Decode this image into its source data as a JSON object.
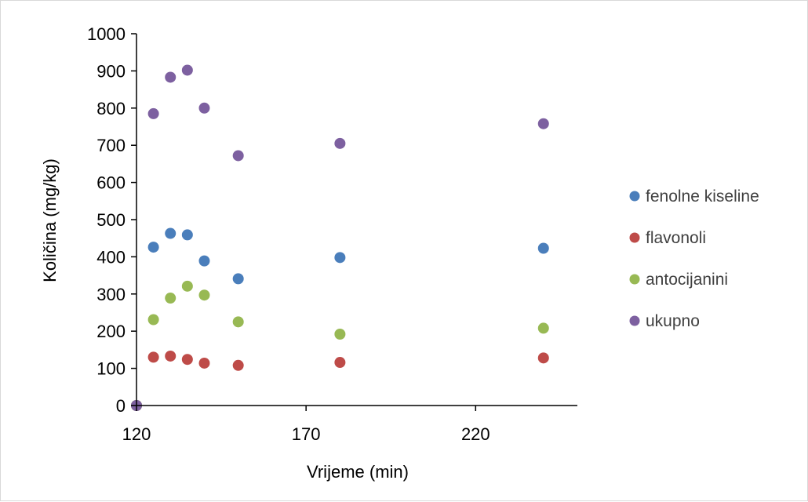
{
  "chart_data": {
    "type": "scatter",
    "title": "",
    "xlabel": "Vrijeme (min)",
    "ylabel": "Količina (mg/kg)",
    "xlim": [
      120,
      250
    ],
    "ylim": [
      0,
      1000
    ],
    "xticks": [
      120,
      170,
      220
    ],
    "yticks": [
      0,
      100,
      200,
      300,
      400,
      500,
      600,
      700,
      800,
      900,
      1000
    ],
    "grid": false,
    "legend_position": "right",
    "series": [
      {
        "name": "fenolne kiseline",
        "color": "#4a7ebb",
        "points": [
          [
            120,
            0
          ],
          [
            125,
            426
          ],
          [
            130,
            463
          ],
          [
            135,
            459
          ],
          [
            140,
            389
          ],
          [
            150,
            341
          ],
          [
            180,
            398
          ],
          [
            240,
            423
          ]
        ]
      },
      {
        "name": "flavonoli",
        "color": "#be4b48",
        "points": [
          [
            120,
            0
          ],
          [
            125,
            130
          ],
          [
            130,
            133
          ],
          [
            135,
            124
          ],
          [
            140,
            114
          ],
          [
            150,
            108
          ],
          [
            180,
            116
          ],
          [
            240,
            128
          ]
        ]
      },
      {
        "name": "antocijanini",
        "color": "#98b954",
        "points": [
          [
            120,
            0
          ],
          [
            125,
            231
          ],
          [
            130,
            289
          ],
          [
            135,
            321
          ],
          [
            140,
            297
          ],
          [
            150,
            225
          ],
          [
            180,
            192
          ],
          [
            240,
            208
          ]
        ]
      },
      {
        "name": "ukupno",
        "color": "#7d60a0",
        "points": [
          [
            120,
            0
          ],
          [
            125,
            785
          ],
          [
            130,
            883
          ],
          [
            135,
            902
          ],
          [
            140,
            800
          ],
          [
            150,
            672
          ],
          [
            180,
            705
          ],
          [
            240,
            758
          ]
        ]
      }
    ]
  }
}
